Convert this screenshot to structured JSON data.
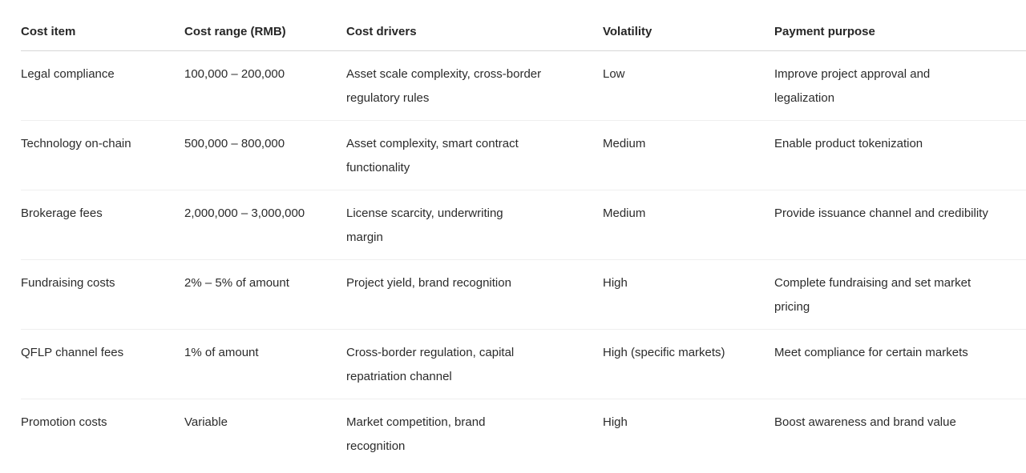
{
  "table": {
    "columns": {
      "cost_item": "Cost item",
      "cost_range": "Cost range (RMB)",
      "cost_drivers": "Cost drivers",
      "volatility": "Volatility",
      "payment_purpose": "Payment purpose"
    },
    "rows": [
      {
        "cost_item": "Legal compliance",
        "cost_range": "100,000 – 200,000",
        "cost_drivers": "Asset scale complexity, cross-border\nregulatory rules",
        "volatility": "Low",
        "payment_purpose": "Improve project approval and\nlegalization"
      },
      {
        "cost_item": "Technology on-chain",
        "cost_range": "500,000 – 800,000",
        "cost_drivers": "Asset complexity, smart contract\nfunctionality",
        "volatility": "Medium",
        "payment_purpose": "Enable product tokenization"
      },
      {
        "cost_item": "Brokerage fees",
        "cost_range": "2,000,000 – 3,000,000",
        "cost_drivers": "License scarcity, underwriting\nmargin",
        "volatility": "Medium",
        "payment_purpose": "Provide issuance channel and credibility"
      },
      {
        "cost_item": "Fundraising costs",
        "cost_range": "2% – 5% of amount",
        "cost_drivers": "Project yield, brand recognition",
        "volatility": "High",
        "payment_purpose": "Complete fundraising and set market\npricing"
      },
      {
        "cost_item": "QFLP channel fees",
        "cost_range": "1% of amount",
        "cost_drivers": "Cross-border regulation, capital\nrepatriation channel",
        "volatility": "High (specific markets)",
        "payment_purpose": "Meet compliance for certain markets"
      },
      {
        "cost_item": "Promotion costs",
        "cost_range": "Variable",
        "cost_drivers": "Market competition, brand\nrecognition",
        "volatility": "High",
        "payment_purpose": "Boost awareness and brand value"
      }
    ],
    "colors": {
      "text": "#2b2b2b",
      "header_divider": "#d6d6d6",
      "row_divider": "#efefef",
      "background": "#ffffff"
    }
  }
}
